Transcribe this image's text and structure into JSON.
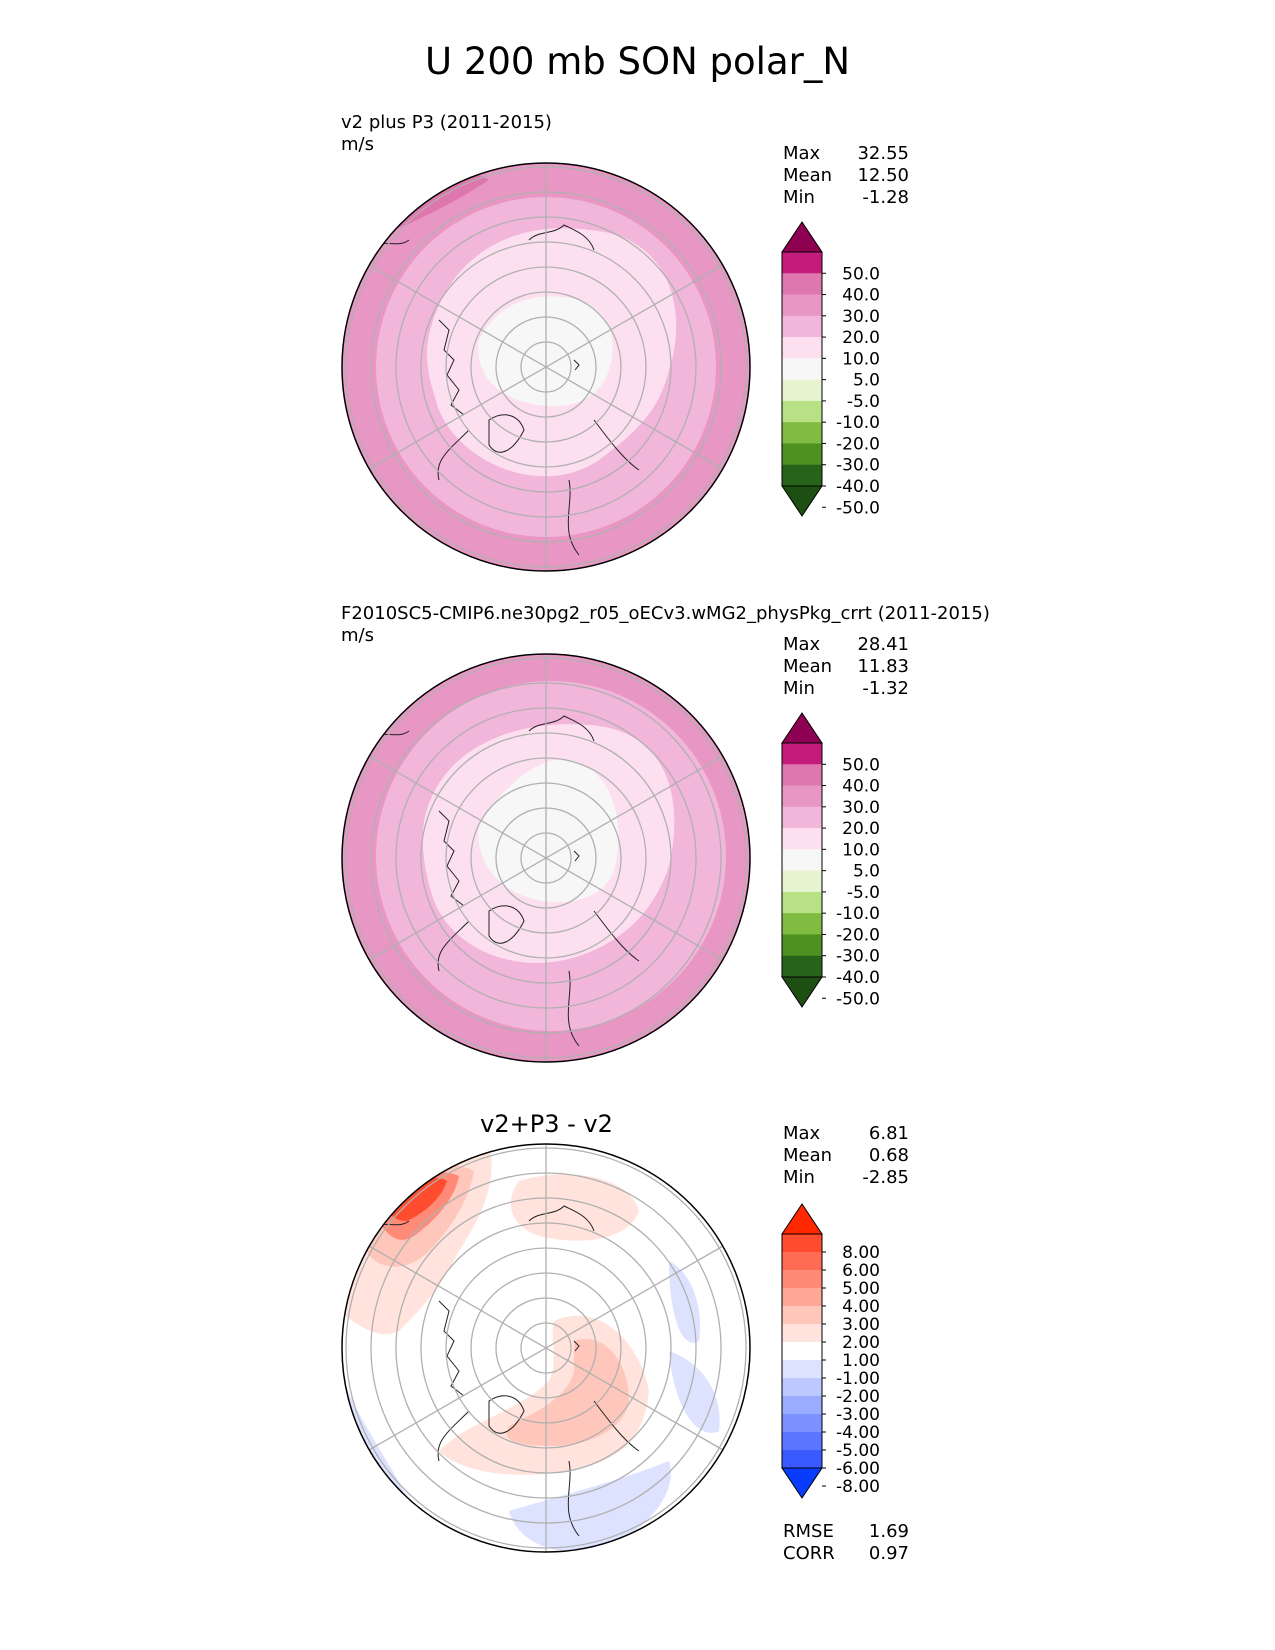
{
  "title": "U 200 mb SON polar_N",
  "panels": [
    {
      "id": "test",
      "title": "v2 plus P3 (2011-2015)",
      "units": "m/s",
      "stats": [
        {
          "label": "Max",
          "value": "32.55"
        },
        {
          "label": "Mean",
          "value": "12.50"
        },
        {
          "label": "Min",
          "value": "-1.28"
        }
      ],
      "colorbar": {
        "labels": [
          "50.0",
          "40.0",
          "30.0",
          "20.0",
          "10.0",
          "5.0",
          "-5.0",
          "-10.0",
          "-20.0",
          "-30.0",
          "-40.0",
          "-50.0"
        ],
        "colors": [
          "#8e0152",
          "#c51b7d",
          "#de77ae",
          "#e896c4",
          "#f1b6da",
          "#fde0ef",
          "#f7f7f7",
          "#e6f5d0",
          "#b8e186",
          "#7fbc41",
          "#4d9221",
          "#276419",
          "#1e4f12"
        ]
      }
    },
    {
      "id": "reference",
      "title": "F2010SC5-CMIP6.ne30pg2_r05_oECv3.wMG2_physPkg_crrt (2011-2015)",
      "units": "m/s",
      "stats": [
        {
          "label": "Max",
          "value": "28.41"
        },
        {
          "label": "Mean",
          "value": "11.83"
        },
        {
          "label": "Min",
          "value": "-1.32"
        }
      ],
      "colorbar": {
        "labels": [
          "50.0",
          "40.0",
          "30.0",
          "20.0",
          "10.0",
          "5.0",
          "-5.0",
          "-10.0",
          "-20.0",
          "-30.0",
          "-40.0",
          "-50.0"
        ],
        "colors": [
          "#8e0152",
          "#c51b7d",
          "#de77ae",
          "#e896c4",
          "#f1b6da",
          "#fde0ef",
          "#f7f7f7",
          "#e6f5d0",
          "#b8e186",
          "#7fbc41",
          "#4d9221",
          "#276419",
          "#1e4f12"
        ]
      }
    },
    {
      "id": "difference",
      "title": "v2+P3 - v2",
      "units": "",
      "stats": [
        {
          "label": "Max",
          "value": "6.81"
        },
        {
          "label": "Mean",
          "value": "0.68"
        },
        {
          "label": "Min",
          "value": "-2.85"
        }
      ],
      "colorbar": {
        "labels": [
          "8.00",
          "6.00",
          "5.00",
          "4.00",
          "3.00",
          "2.00",
          "1.00",
          "-1.00",
          "-2.00",
          "-3.00",
          "-4.00",
          "-5.00",
          "-6.00",
          "-8.00"
        ],
        "colors": [
          "#ff2800",
          "#ff4c2e",
          "#ff6b55",
          "#ff8a78",
          "#ffa898",
          "#ffc7bb",
          "#ffe3dc",
          "#ffffff",
          "#dde3ff",
          "#bcc8ff",
          "#9aacff",
          "#7a91ff",
          "#5a75ff",
          "#3a5aff",
          "#0a3cff"
        ]
      },
      "metrics": [
        {
          "label": "RMSE",
          "value": "1.69"
        },
        {
          "label": "CORR",
          "value": "0.97"
        }
      ]
    }
  ]
}
